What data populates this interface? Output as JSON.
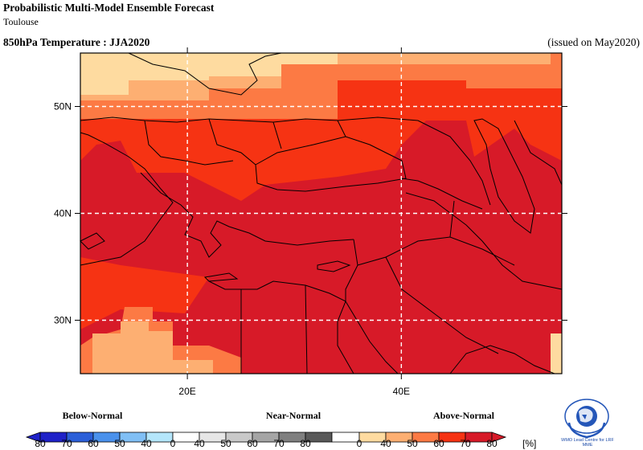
{
  "header": {
    "title": "Probabilistic Multi-Model Ensemble Forecast",
    "subtitle": "Toulouse",
    "variable": "850hPa Temperature : JJA2020",
    "issued": "(issued on May2020)"
  },
  "map": {
    "lon_range": [
      10,
      55
    ],
    "lat_range": [
      25,
      55
    ],
    "lat_ticks": [
      {
        "value": 30,
        "label": "30N"
      },
      {
        "value": 40,
        "label": "40N"
      },
      {
        "value": 50,
        "label": "50N"
      }
    ],
    "lon_ticks": [
      {
        "value": 20,
        "label": "20E"
      },
      {
        "value": 40,
        "label": "40E"
      }
    ],
    "category_colors": {
      "AN40": "#fedba0",
      "AN50": "#fdaf72",
      "AN60": "#fc7a44",
      "AN70": "#f63313",
      "AN80": "#d71a28"
    }
  },
  "legend": {
    "categories": [
      {
        "name": "Below-Normal",
        "colors": [
          "#1f22c8",
          "#2b5fd8",
          "#4a91ec",
          "#80bff5",
          "#b4e6fb"
        ]
      },
      {
        "name": "Near-Normal",
        "colors": [
          "#e6e6e6",
          "#c9c9c9",
          "#a5a5a5",
          "#7f7f7f",
          "#595959"
        ]
      },
      {
        "name": "Above-Normal",
        "colors": [
          "#fedba0",
          "#fdaf72",
          "#fc7a44",
          "#f63313",
          "#d71a28"
        ]
      }
    ],
    "below_labels": [
      "80",
      "70",
      "60",
      "50",
      "40"
    ],
    "near_labels": [
      "0",
      "40",
      "50",
      "60",
      "70",
      "80"
    ],
    "above_labels": [
      "0",
      "40",
      "50",
      "60",
      "70",
      "80"
    ],
    "unit": "[%]"
  },
  "logo": {
    "text": "WMO Lead Centre for LRF MME"
  }
}
